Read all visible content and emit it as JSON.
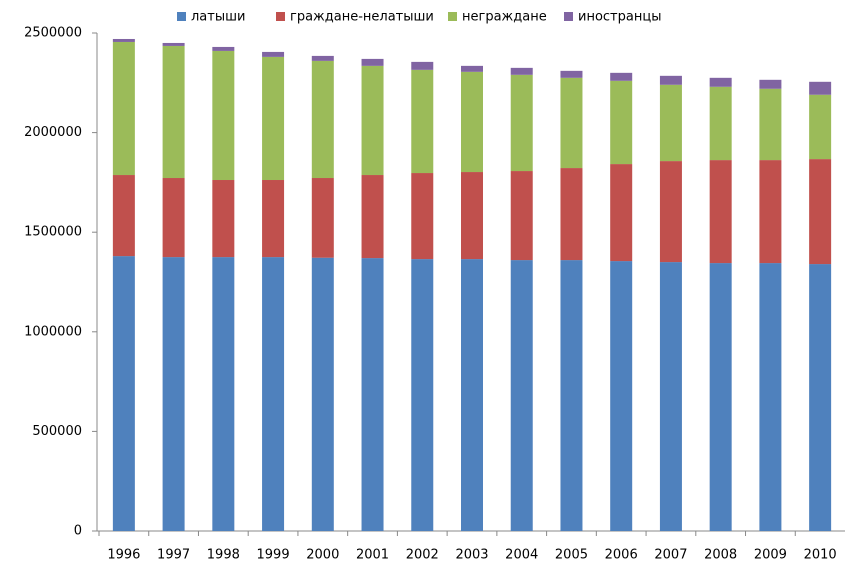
{
  "chart_data": {
    "type": "stacked_bar",
    "categories": [
      "1996",
      "1997",
      "1998",
      "1999",
      "2000",
      "2001",
      "2002",
      "2003",
      "2004",
      "2005",
      "2006",
      "2007",
      "2008",
      "2009",
      "2010"
    ],
    "series": [
      {
        "name": "латыши",
        "color": "#4f81bd",
        "values": [
          1380000,
          1375000,
          1375000,
          1375000,
          1372000,
          1370000,
          1365000,
          1365000,
          1360000,
          1360000,
          1355000,
          1350000,
          1345000,
          1345000,
          1340000
        ]
      },
      {
        "name": "граждане-нелатыши",
        "color": "#c0504d",
        "values": [
          407000,
          397000,
          387000,
          387000,
          400000,
          417000,
          432000,
          437000,
          447000,
          462000,
          487000,
          507000,
          517000,
          517000,
          527000
        ]
      },
      {
        "name": "неграждане",
        "color": "#9bbb59",
        "values": [
          668000,
          663000,
          648000,
          618000,
          588000,
          548000,
          518000,
          503000,
          483000,
          453000,
          418000,
          383000,
          368000,
          358000,
          323000
        ]
      },
      {
        "name": "иностранцы",
        "color": "#8064a2",
        "values": [
          15000,
          15000,
          20000,
          25000,
          25000,
          35000,
          40000,
          30000,
          35000,
          35000,
          40000,
          45000,
          45000,
          45000,
          65000
        ]
      }
    ],
    "ylim": [
      0,
      2500000
    ],
    "yticks": [
      0,
      500000,
      1000000,
      1500000,
      2000000,
      2500000
    ],
    "legend": "top"
  }
}
